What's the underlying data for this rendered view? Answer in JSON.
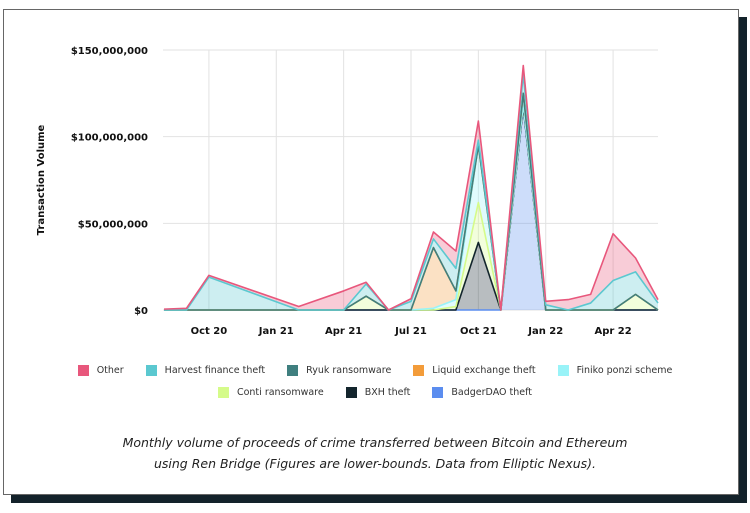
{
  "chart_data": {
    "type": "area",
    "stacked": true,
    "ylabel": "Transaction Volume",
    "xlabel": "",
    "y_ticks": [
      "$0",
      "$50,000,000",
      "$100,000,000",
      "$150,000,000"
    ],
    "y_tick_values": [
      0,
      50000000,
      100000000,
      150000000
    ],
    "ylim": [
      0,
      150000000
    ],
    "x_ticks": [
      "Oct 20",
      "Jan 21",
      "Apr 21",
      "Jul 21",
      "Oct 21",
      "Jan 22",
      "Apr 22"
    ],
    "x_tick_dates": [
      "2020-10",
      "2021-01",
      "2021-04",
      "2021-07",
      "2021-10",
      "2022-01",
      "2022-04"
    ],
    "xlim": [
      "2020-08",
      "2022-06"
    ],
    "grid": true,
    "legend_position": "bottom",
    "x": [
      "2020-08",
      "2020-09",
      "2020-10",
      "2021-02",
      "2021-04",
      "2021-05",
      "2021-06",
      "2021-07",
      "2021-08",
      "2021-09",
      "2021-10",
      "2021-11",
      "2021-12",
      "2022-01",
      "2022-02",
      "2022-03",
      "2022-04",
      "2022-05",
      "2022-06"
    ],
    "series": [
      {
        "name": "BadgerDAO theft",
        "color": "#5b8def",
        "values": [
          0,
          0,
          0,
          0,
          0,
          0,
          0,
          0,
          0,
          0,
          0,
          0,
          117000000,
          0,
          0,
          0,
          0,
          0,
          0
        ]
      },
      {
        "name": "BXH theft",
        "color": "#13252d",
        "values": [
          0,
          0,
          0,
          0,
          0,
          0,
          0,
          0,
          0,
          0,
          39000000,
          0,
          0,
          0,
          0,
          0,
          0,
          0,
          0
        ]
      },
      {
        "name": "Conti ransomware",
        "color": "#d5fb8a",
        "values": [
          0,
          0,
          0,
          0,
          0,
          8000000,
          0,
          0,
          0,
          2000000,
          23000000,
          0,
          2000000,
          0,
          0,
          0,
          0,
          9000000,
          0
        ]
      },
      {
        "name": "Finiko ponzi scheme",
        "color": "#99f3f8",
        "values": [
          0,
          0,
          0,
          0,
          0,
          0,
          0,
          0,
          1000000,
          4000000,
          33000000,
          0,
          0,
          0,
          0,
          0,
          0,
          0,
          0
        ]
      },
      {
        "name": "Liquid exchange theft",
        "color": "#f39c3a",
        "values": [
          0,
          0,
          0,
          0,
          0,
          0,
          0,
          0,
          35000000,
          5000000,
          0,
          0,
          6000000,
          0,
          0,
          0,
          0,
          0,
          0
        ]
      },
      {
        "name": "Ryuk ransomware",
        "color": "#3f7f7f",
        "values": [
          0,
          0,
          0,
          0,
          0,
          0,
          0,
          0,
          0,
          0,
          0,
          0,
          0,
          0,
          0,
          0,
          0,
          0,
          0
        ]
      },
      {
        "name": "Harvest finance theft",
        "color": "#5bc8d0",
        "values": [
          0,
          0,
          19000000,
          0,
          0,
          7000000,
          0,
          5000000,
          5000000,
          13000000,
          3000000,
          0,
          11000000,
          3000000,
          0,
          4000000,
          17000000,
          13000000,
          4000000
        ]
      },
      {
        "name": "Other",
        "color": "#e8577c",
        "values": [
          500000,
          1000000,
          1000000,
          2000000,
          11000000,
          1000000,
          0,
          1500000,
          4000000,
          10000000,
          11000000,
          0,
          5000000,
          2000000,
          6000000,
          5000000,
          27000000,
          8000000,
          2000000
        ]
      }
    ]
  },
  "legend": {
    "row1": [
      "Other",
      "Harvest finance theft",
      "Ryuk ransomware",
      "Liquid exchange theft",
      "Finiko ponzi scheme"
    ],
    "row2": [
      "Conti ransomware",
      "BXH theft",
      "BadgerDAO theft"
    ]
  },
  "caption": {
    "line1": "Monthly volume of proceeds of crime transferred between Bitcoin and Ethereum",
    "line2": "using Ren Bridge (Figures are lower-bounds. Data from Elliptic Nexus)."
  }
}
